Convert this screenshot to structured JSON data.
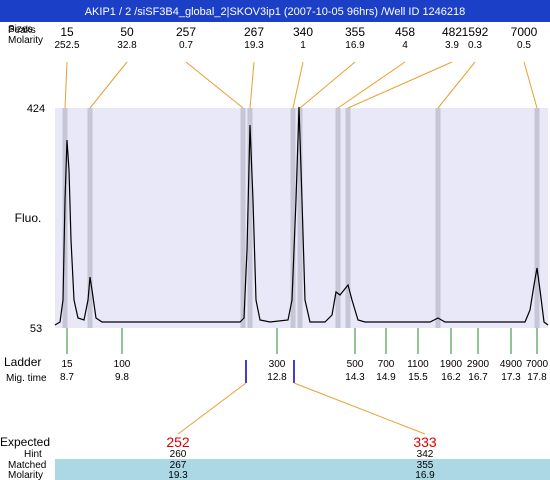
{
  "header": {
    "title": "AKIP1 / 2 /siSF3B4_global_2|SKOV3ip1 (2007-10-05 96hrs) /Well ID 1246218"
  },
  "peaks": {
    "labels": [
      "Peaks",
      "Sizes",
      "Molarity"
    ],
    "sizes": [
      "15",
      "50",
      "257",
      "267",
      "340",
      "355",
      "458",
      "482",
      "1592",
      "7000"
    ],
    "molarities": [
      "252.5",
      "32.8",
      "0.7",
      "19.3",
      "1",
      "16.9",
      "4",
      "3.9",
      "0.3",
      "0.5"
    ]
  },
  "axis": {
    "top": "424",
    "bottom": "53",
    "label": "Fluo."
  },
  "ladder": {
    "labels": [
      "Ladder",
      "Mig. time"
    ],
    "sizes": [
      "15",
      "100",
      "300",
      "500",
      "700",
      "1100",
      "1900",
      "2900",
      "4900",
      "7000"
    ],
    "times": [
      "8.7",
      "9.8",
      "12.8",
      "14.3",
      "14.9",
      "15.5",
      "16.2",
      "16.7",
      "17.3",
      "17.8"
    ]
  },
  "expected": {
    "labels": [
      "Expected",
      "Hint",
      "Matched",
      "Molarity"
    ],
    "columns": [
      [
        "252",
        "260",
        "267",
        "19.3"
      ],
      [
        "333",
        "342",
        "355",
        "16.9"
      ]
    ]
  }
}
